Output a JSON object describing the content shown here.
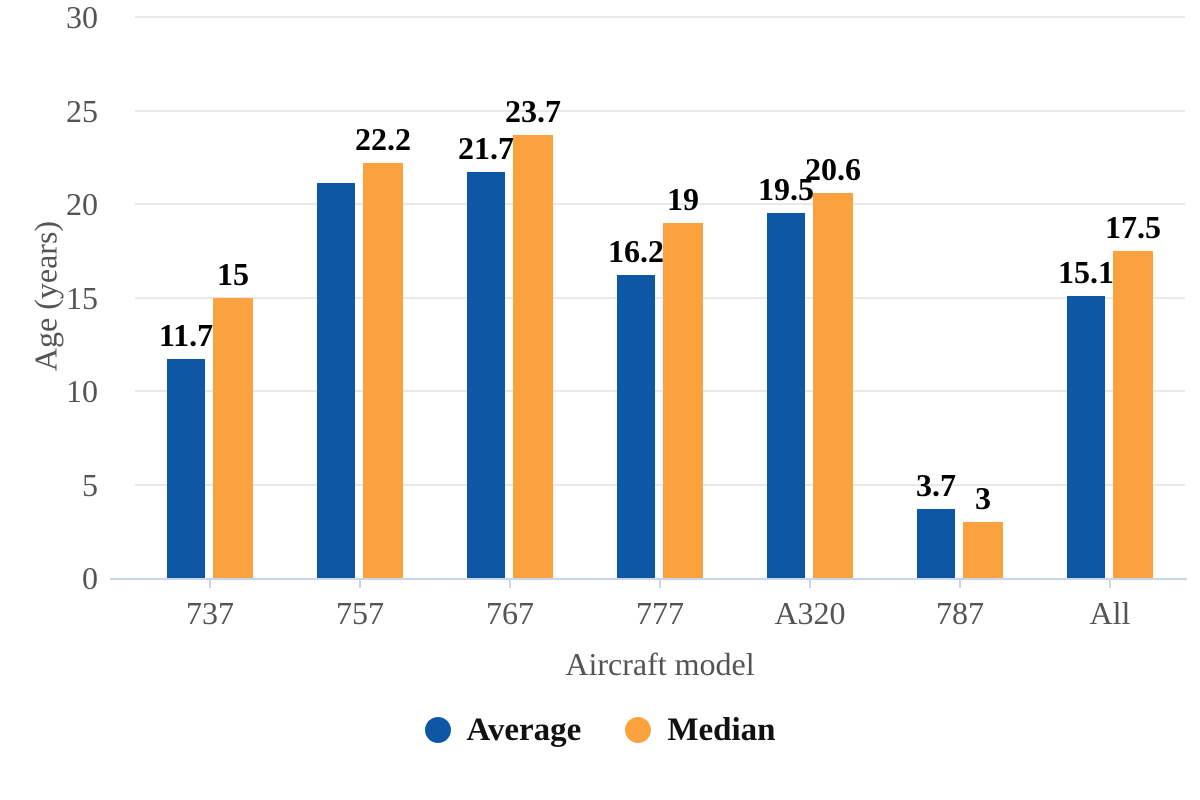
{
  "chart_data": {
    "type": "bar",
    "title": "",
    "xlabel": "Aircraft model",
    "ylabel": "Age (years)",
    "categories": [
      "737",
      "757",
      "767",
      "777",
      "A320",
      "787",
      "All"
    ],
    "series": [
      {
        "name": "Average",
        "color": "#0d57a5",
        "values": [
          11.7,
          21.1,
          21.7,
          16.2,
          19.5,
          3.7,
          15.1
        ],
        "data_labels": [
          "11.7",
          "",
          "21.7",
          "16.2",
          "19.5",
          "3.7",
          "15.1"
        ]
      },
      {
        "name": "Median",
        "color": "#fba23f",
        "values": [
          15,
          22.2,
          23.7,
          19,
          20.6,
          3,
          17.5
        ],
        "data_labels": [
          "15",
          "22.2",
          "23.7",
          "19",
          "20.6",
          "3",
          "17.5"
        ]
      }
    ],
    "ylim": [
      0,
      30
    ],
    "yticks": [
      0,
      5,
      10,
      15,
      20,
      25,
      30
    ],
    "grid": true,
    "legend_position": "bottom"
  },
  "styles": {
    "grid_color": "#e9e9e9",
    "axis_color": "#c9d5e8",
    "tick_label_color": "#545454",
    "data_label_color": "#000000"
  }
}
